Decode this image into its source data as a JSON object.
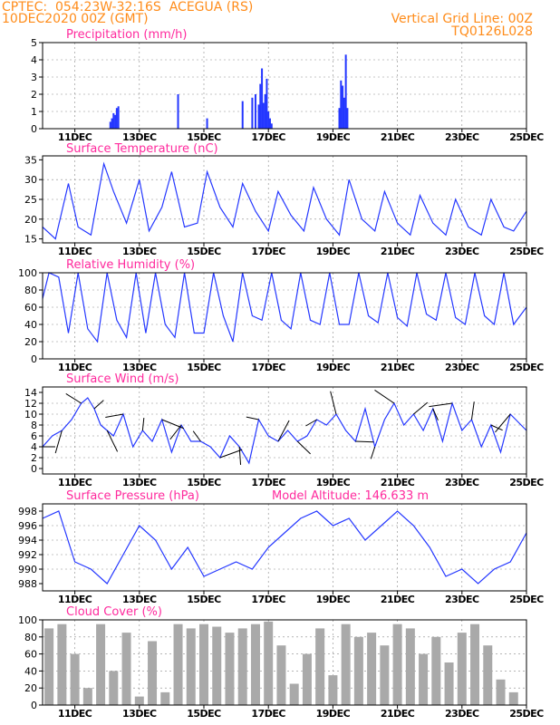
{
  "header": {
    "line1": "CPTEC:  054:23W-32:16S  ACEGUA (RS)",
    "line2": "10DEC2020 00Z (GMT)",
    "right1": "Vertical Grid Line: 00Z",
    "right2": "TQ0126L028"
  },
  "colors": {
    "header": "#ff8c1a",
    "title": "#ff2a9d",
    "series": "#2437ff",
    "bars": "#2437ff",
    "cloud": "#a9a9a9"
  },
  "date_labels": [
    "11DEC",
    "13DEC",
    "15DEC",
    "17DEC",
    "19DEC",
    "21DEC",
    "23DEC",
    "25DEC"
  ],
  "panels": [
    {
      "title": "Precipitation (mm/h)",
      "yticks": [
        "0",
        "1",
        "2",
        "3",
        "4",
        "5"
      ]
    },
    {
      "title": "Surface Temperature (nC)",
      "yticks": [
        "15",
        "20",
        "25",
        "30",
        "35"
      ]
    },
    {
      "title": "Relative Humidity (%)",
      "yticks": [
        "0",
        "20",
        "40",
        "60",
        "80",
        "100"
      ]
    },
    {
      "title": "Surface Wind (m/s)",
      "yticks": [
        "0",
        "2",
        "4",
        "6",
        "8",
        "10",
        "12",
        "14"
      ]
    },
    {
      "title": "Surface Pressure (hPa)",
      "extra": "Model Altitude: 146.633 m",
      "yticks": [
        "988",
        "990",
        "992",
        "994",
        "996",
        "998"
      ]
    },
    {
      "title": "Cloud Cover (%)",
      "yticks": [
        "0",
        "20",
        "40",
        "60",
        "80",
        "100"
      ]
    }
  ],
  "chart_data": [
    {
      "type": "bar",
      "title": "Precipitation (mm/h)",
      "x_unit": "days since 10DEC2020 00Z",
      "ylim": [
        0,
        5
      ],
      "x": [
        2.1,
        2.15,
        2.2,
        2.25,
        2.3,
        2.35,
        4.2,
        5.1,
        6.2,
        6.5,
        6.6,
        6.7,
        6.75,
        6.8,
        6.85,
        6.9,
        6.95,
        7.0,
        7.05,
        7.1,
        9.2,
        9.25,
        9.3,
        9.35,
        9.4,
        9.45
      ],
      "values": [
        0.4,
        0.6,
        0.9,
        0.8,
        1.2,
        1.3,
        2.0,
        0.6,
        1.6,
        1.8,
        2.0,
        1.4,
        2.6,
        3.5,
        1.5,
        2.0,
        2.9,
        1.0,
        0.6,
        0.3,
        1.2,
        2.8,
        2.5,
        1.8,
        4.3,
        1.2
      ]
    },
    {
      "type": "line",
      "title": "Surface Temperature (nC)",
      "x_unit": "days since 10DEC2020 00Z",
      "ylim": [
        14,
        36
      ],
      "x": [
        0,
        0.4,
        0.8,
        1.1,
        1.5,
        1.9,
        2.2,
        2.6,
        3.0,
        3.3,
        3.7,
        4.0,
        4.4,
        4.8,
        5.1,
        5.5,
        5.9,
        6.2,
        6.6,
        7.0,
        7.3,
        7.7,
        8.1,
        8.4,
        8.8,
        9.2,
        9.5,
        9.9,
        10.3,
        10.6,
        11.0,
        11.4,
        11.7,
        12.1,
        12.5,
        12.8,
        13.2,
        13.6,
        13.9,
        14.3,
        14.6,
        15.0
      ],
      "values": [
        18,
        15,
        29,
        18,
        16,
        34,
        27,
        19,
        30,
        17,
        23,
        32,
        18,
        19,
        32,
        23,
        18,
        29,
        22,
        17,
        27,
        21,
        17,
        28,
        20,
        16,
        30,
        20,
        17,
        27,
        19,
        16,
        26,
        19,
        16,
        25,
        18,
        16,
        25,
        18,
        17,
        22
      ]
    },
    {
      "type": "line",
      "title": "Relative Humidity (%)",
      "x_unit": "days since 10DEC2020 00Z",
      "ylim": [
        0,
        100
      ],
      "x": [
        0,
        0.2,
        0.5,
        0.8,
        1.1,
        1.4,
        1.7,
        2.0,
        2.3,
        2.6,
        2.9,
        3.2,
        3.5,
        3.8,
        4.1,
        4.4,
        4.7,
        5.0,
        5.3,
        5.6,
        5.9,
        6.2,
        6.5,
        6.8,
        7.1,
        7.4,
        7.7,
        8.0,
        8.3,
        8.6,
        8.9,
        9.2,
        9.5,
        9.8,
        10.1,
        10.4,
        10.7,
        11.0,
        11.3,
        11.6,
        11.9,
        12.2,
        12.5,
        12.8,
        13.1,
        13.4,
        13.7,
        14.0,
        14.3,
        14.6,
        15.0
      ],
      "values": [
        70,
        100,
        95,
        30,
        100,
        35,
        20,
        100,
        45,
        25,
        100,
        30,
        100,
        40,
        25,
        100,
        30,
        30,
        100,
        50,
        20,
        100,
        50,
        45,
        100,
        45,
        35,
        100,
        45,
        40,
        100,
        40,
        40,
        100,
        50,
        42,
        100,
        48,
        38,
        100,
        52,
        45,
        100,
        48,
        40,
        100,
        50,
        40,
        100,
        40,
        60
      ]
    },
    {
      "type": "line",
      "title": "Surface Wind (m/s)",
      "x_unit": "days since 10DEC2020 00Z",
      "ylim": [
        -1,
        15
      ],
      "x": [
        0,
        0.3,
        0.6,
        0.9,
        1.2,
        1.4,
        1.6,
        1.8,
        2.0,
        2.2,
        2.5,
        2.8,
        3.1,
        3.4,
        3.7,
        4.0,
        4.3,
        4.6,
        4.9,
        5.2,
        5.5,
        5.8,
        6.1,
        6.4,
        6.7,
        7.0,
        7.3,
        7.6,
        7.9,
        8.2,
        8.5,
        8.8,
        9.1,
        9.4,
        9.7,
        10.0,
        10.3,
        10.6,
        10.9,
        11.2,
        11.5,
        11.8,
        12.1,
        12.4,
        12.7,
        13.0,
        13.3,
        13.6,
        13.9,
        14.2,
        14.5,
        15.0
      ],
      "values": [
        4,
        6,
        7,
        9,
        12,
        13,
        11,
        8,
        7,
        6,
        10,
        4,
        7,
        5,
        9,
        3,
        8,
        5,
        5,
        4,
        2,
        6,
        4,
        1,
        9,
        6,
        5,
        7,
        5,
        6,
        9,
        8,
        10,
        7,
        5,
        11,
        4,
        9,
        12,
        8,
        10,
        7,
        11,
        5,
        12,
        7,
        9,
        4,
        8,
        3,
        10,
        7
      ]
    },
    {
      "type": "line",
      "title": "Surface Pressure (hPa)",
      "x_unit": "days since 10DEC2020 00Z",
      "ylim": [
        987,
        999
      ],
      "x": [
        0,
        0.5,
        1.0,
        1.5,
        2.0,
        2.5,
        3.0,
        3.5,
        4.0,
        4.5,
        5.0,
        5.5,
        6.0,
        6.5,
        7.0,
        7.5,
        8.0,
        8.5,
        9.0,
        9.5,
        10.0,
        10.5,
        11.0,
        11.5,
        12.0,
        12.5,
        13.0,
        13.5,
        14.0,
        14.5,
        15.0
      ],
      "values": [
        997,
        998,
        991,
        990,
        988,
        992,
        996,
        994,
        990,
        993,
        989,
        990,
        991,
        990,
        993,
        995,
        997,
        998,
        996,
        997,
        994,
        996,
        998,
        996,
        993,
        989,
        990,
        988,
        990,
        991,
        995
      ]
    },
    {
      "type": "bar",
      "title": "Cloud Cover (%)",
      "x_unit": "days since 10DEC2020 00Z",
      "ylim": [
        0,
        100
      ],
      "x": [
        0.2,
        0.6,
        1.0,
        1.4,
        1.8,
        2.2,
        2.6,
        3.0,
        3.4,
        3.8,
        4.2,
        4.6,
        5.0,
        5.4,
        5.8,
        6.2,
        6.6,
        7.0,
        7.4,
        7.8,
        8.2,
        8.6,
        9.0,
        9.4,
        9.8,
        10.2,
        10.6,
        11.0,
        11.4,
        11.8,
        12.2,
        12.6,
        13.0,
        13.4,
        13.8,
        14.2,
        14.6
      ],
      "values": [
        90,
        95,
        60,
        20,
        95,
        40,
        85,
        10,
        75,
        15,
        95,
        90,
        95,
        92,
        85,
        90,
        95,
        98,
        70,
        25,
        60,
        90,
        35,
        95,
        80,
        85,
        70,
        95,
        90,
        60,
        80,
        50,
        85,
        95,
        70,
        30,
        15
      ]
    }
  ]
}
